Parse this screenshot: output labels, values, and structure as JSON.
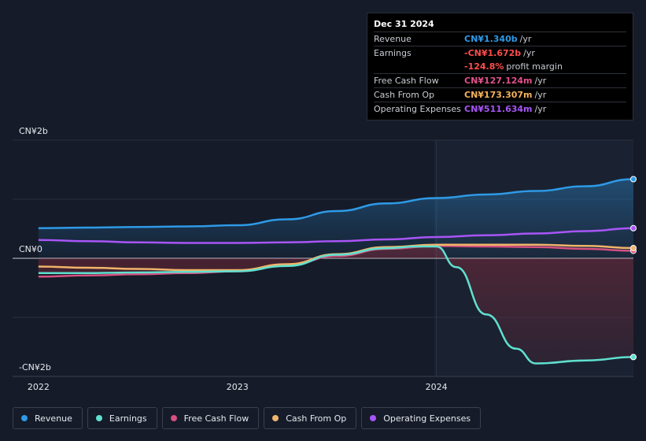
{
  "tooltip": {
    "date": "Dec 31 2024",
    "rows": [
      {
        "label": "Revenue",
        "value": "CN¥1.340b",
        "unit": "/yr",
        "color": "#2e9ae6"
      },
      {
        "label": "Earnings",
        "value": "-CN¥1.672b",
        "unit": "/yr",
        "color": "#ff4d4d"
      },
      {
        "label": "",
        "value": "-124.8%",
        "unit": "profit margin",
        "color": "#ff4d4d"
      },
      {
        "label": "Free Cash Flow",
        "value": "CN¥127.124m",
        "unit": "/yr",
        "color": "#e0508a"
      },
      {
        "label": "Cash From Op",
        "value": "CN¥173.307m",
        "unit": "/yr",
        "color": "#f5b25c"
      },
      {
        "label": "Operating Expenses",
        "value": "CN¥511.634m",
        "unit": "/yr",
        "color": "#a855f7"
      }
    ]
  },
  "legend": [
    {
      "label": "Revenue",
      "color": "#2e9ae6"
    },
    {
      "label": "Earnings",
      "color": "#5fe0cf"
    },
    {
      "label": "Free Cash Flow",
      "color": "#d6517f"
    },
    {
      "label": "Cash From Op",
      "color": "#f0b46a"
    },
    {
      "label": "Operating Expenses",
      "color": "#a855f7"
    }
  ],
  "chart_data": {
    "type": "line",
    "y_tick_labels": [
      "CN¥2b",
      "CN¥0",
      "-CN¥2b"
    ],
    "y_ticks": [
      2,
      0,
      -2
    ],
    "x_tick_labels": [
      "2022",
      "2023",
      "2024"
    ],
    "x_ticks": [
      2022.0,
      2023.0,
      2024.0
    ],
    "xlim": [
      2021.87,
      2024.99
    ],
    "ylim": [
      -2.0,
      2.0
    ],
    "grid": true,
    "colors": {
      "revenue": "#2e9ae6",
      "earnings": "#5fe0cf",
      "fcf": "#d6517f",
      "cfo": "#f0b46a",
      "opex": "#a855f7"
    },
    "series": [
      {
        "name": "Revenue",
        "x": [
          2022.0,
          2022.25,
          2022.5,
          2022.75,
          2023.0,
          2023.25,
          2023.5,
          2023.75,
          2024.0,
          2024.25,
          2024.5,
          2024.75,
          2024.99
        ],
        "values": [
          0.51,
          0.52,
          0.53,
          0.54,
          0.56,
          0.66,
          0.8,
          0.93,
          1.02,
          1.08,
          1.14,
          1.22,
          1.34
        ]
      },
      {
        "name": "Earnings",
        "x": [
          2022.0,
          2022.25,
          2022.5,
          2022.75,
          2023.0,
          2023.25,
          2023.5,
          2023.75,
          2023.9,
          2024.0,
          2024.1,
          2024.25,
          2024.4,
          2024.5,
          2024.75,
          2024.99
        ],
        "values": [
          -0.25,
          -0.25,
          -0.24,
          -0.23,
          -0.22,
          -0.13,
          0.06,
          0.17,
          0.2,
          0.2,
          -0.15,
          -0.95,
          -1.53,
          -1.78,
          -1.73,
          -1.672
        ]
      },
      {
        "name": "Free Cash Flow",
        "x": [
          2022.0,
          2022.25,
          2022.5,
          2022.75,
          2023.0,
          2023.25,
          2023.5,
          2023.75,
          2024.0,
          2024.25,
          2024.5,
          2024.75,
          2024.99
        ],
        "values": [
          -0.31,
          -0.29,
          -0.27,
          -0.25,
          -0.22,
          -0.12,
          0.04,
          0.16,
          0.21,
          0.2,
          0.19,
          0.16,
          0.127
        ]
      },
      {
        "name": "Cash From Op",
        "x": [
          2022.0,
          2022.25,
          2022.5,
          2022.75,
          2023.0,
          2023.25,
          2023.5,
          2023.75,
          2024.0,
          2024.25,
          2024.5,
          2024.75,
          2024.99
        ],
        "values": [
          -0.14,
          -0.16,
          -0.18,
          -0.2,
          -0.2,
          -0.1,
          0.07,
          0.19,
          0.23,
          0.23,
          0.23,
          0.21,
          0.173
        ]
      },
      {
        "name": "Operating Expenses",
        "x": [
          2022.0,
          2022.25,
          2022.5,
          2022.75,
          2023.0,
          2023.25,
          2023.5,
          2023.75,
          2024.0,
          2024.25,
          2024.5,
          2024.75,
          2024.99
        ],
        "values": [
          0.31,
          0.29,
          0.27,
          0.26,
          0.26,
          0.27,
          0.29,
          0.32,
          0.36,
          0.39,
          0.42,
          0.46,
          0.51
        ]
      }
    ]
  }
}
